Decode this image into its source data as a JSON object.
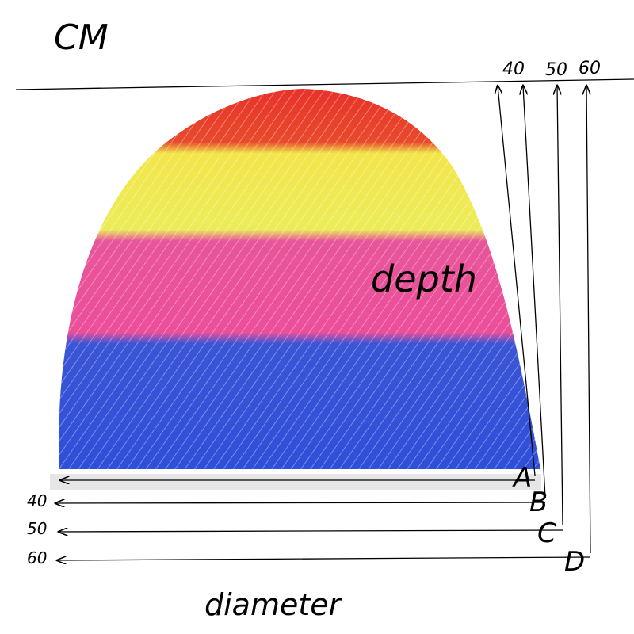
{
  "title": "CM",
  "depth_label": "depth",
  "diameter_label": "diameter",
  "top_sizes": [
    "40",
    "50",
    "60"
  ],
  "left_sizes": [
    "40",
    "50",
    "60"
  ],
  "letters": [
    "A",
    "B",
    "C",
    "D"
  ]
}
